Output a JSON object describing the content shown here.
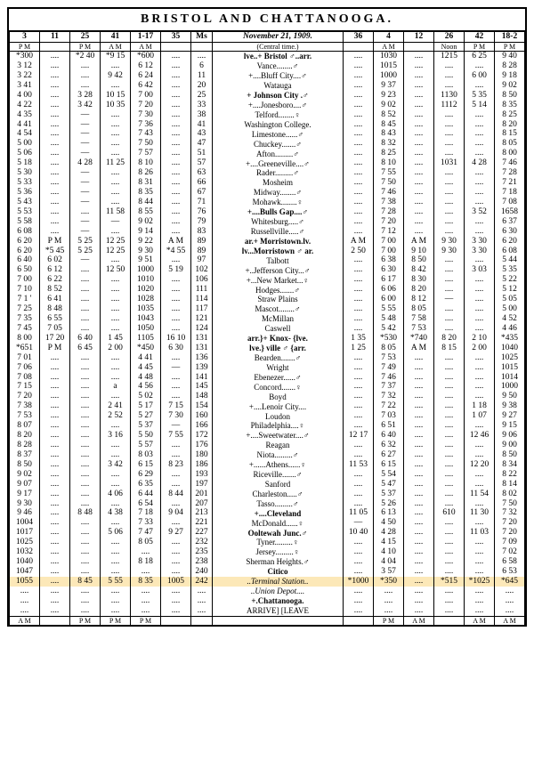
{
  "title": "BRISTOL AND CHATTANOOGA.",
  "date_row": "November 21, 1909.",
  "subtitle": "(Central time.)",
  "arrive_leave": "ARRIVE]        [LEAVE",
  "columns_left": [
    "3",
    "11",
    "25",
    "41",
    "1-17",
    "35",
    "Ms"
  ],
  "columns_right": [
    "36",
    "4",
    "12",
    "26",
    "42",
    "18-2"
  ],
  "ampm_left": [
    "P M",
    "",
    "P M",
    "A M",
    "A M",
    "",
    ""
  ],
  "ampm_right": [
    "",
    "A M",
    "",
    "Noon",
    "P M",
    "P M"
  ],
  "ampm_foot_left": [
    "A M",
    "",
    "P M",
    "P M",
    "P M",
    "",
    ""
  ],
  "ampm_foot_right": [
    "",
    "P M",
    "A M",
    "",
    "A M",
    "A M"
  ],
  "rows": [
    {
      "l": [
        "*300",
        "",
        "*2 40",
        "*9 15",
        "*600",
        "",
        ""
      ],
      "st": "lve..+ Bristol ♂..arr.",
      "b": true,
      "r": [
        "",
        "1030",
        "",
        "1215",
        "6 25",
        "9 40"
      ]
    },
    {
      "l": [
        "3 12",
        "",
        "",
        "",
        "6 12",
        "",
        "6"
      ],
      "st": "Vance........♂",
      "r": [
        "",
        "1015",
        "",
        "",
        "",
        "8 28"
      ]
    },
    {
      "l": [
        "3 22",
        "",
        "",
        "9 42",
        "6 24",
        "",
        "11"
      ],
      "st": "+....Bluff City....♂",
      "r": [
        "",
        "1000",
        "",
        "",
        "6 00",
        "9 18"
      ]
    },
    {
      "l": [
        "3 41",
        "",
        "",
        "",
        "6 42",
        "",
        "20"
      ],
      "st": "Watauga",
      "r": [
        "",
        "9 37",
        "",
        "",
        "",
        "9 02"
      ]
    },
    {
      "l": [
        "4 00",
        "",
        "3 28",
        "10 15",
        "7 00",
        "",
        "25"
      ],
      "st": "+ Johnson City .♂",
      "b": true,
      "r": [
        "",
        "9 23",
        "",
        "1130",
        "5 35",
        "8 50"
      ]
    },
    {
      "l": [
        "4 22",
        "",
        "3 42",
        "10 35",
        "7 20",
        "",
        "33"
      ],
      "st": "+....Jonesboro....♂",
      "r": [
        "",
        "9 02",
        "",
        "1112",
        "5 14",
        "8 35"
      ]
    },
    {
      "l": [
        "4 35",
        "",
        "—",
        "",
        "7 30",
        "",
        "38"
      ],
      "st": "Telford........♀",
      "r": [
        "",
        "8 52",
        "",
        "",
        "",
        "8 25"
      ]
    },
    {
      "l": [
        "4 41",
        "",
        "—",
        "",
        "7 36",
        "",
        "41"
      ],
      "st": "Washington College.",
      "r": [
        "",
        "8 45",
        "",
        "",
        "",
        "8 20"
      ]
    },
    {
      "l": [
        "4 54",
        "",
        "—",
        "",
        "7 43",
        "",
        "43"
      ],
      "st": "Limestone......♂",
      "r": [
        "",
        "8 43",
        "",
        "",
        "",
        "8 15"
      ]
    },
    {
      "l": [
        "5 00",
        "",
        "—",
        "",
        "7 50",
        "",
        "47"
      ],
      "st": "Chuckey.......♂",
      "r": [
        "",
        "8 32",
        "",
        "",
        "",
        "8 05"
      ]
    },
    {
      "l": [
        "5 06",
        "",
        "—",
        "",
        "7 57",
        "",
        "51"
      ],
      "st": "Afton.........♂",
      "r": [
        "",
        "8 25",
        "",
        "",
        "",
        "8 00"
      ]
    },
    {
      "l": [
        "5 18",
        "",
        "4 28",
        "11 25",
        "8 10",
        "",
        "57"
      ],
      "st": "+....Greeneville....♂",
      "r": [
        "",
        "8 10",
        "",
        "1031",
        "4 28",
        "7 46"
      ]
    },
    {
      "l": [
        "5 30",
        "",
        "—",
        "",
        "8 26",
        "",
        "63"
      ],
      "st": "Rader.........♂",
      "r": [
        "",
        "7 55",
        "",
        "",
        "",
        "7 28"
      ]
    },
    {
      "l": [
        "5 33",
        "",
        "—",
        "",
        "8 31",
        "",
        "66"
      ],
      "st": "Mosheim",
      "r": [
        "",
        "7 50",
        "",
        "",
        "",
        "7 21"
      ]
    },
    {
      "l": [
        "5 36",
        "",
        "—",
        "",
        "8 35",
        "",
        "67"
      ],
      "st": "Midway........♂",
      "r": [
        "",
        "7 46",
        "",
        "",
        "",
        "7 18"
      ]
    },
    {
      "l": [
        "5 43",
        "",
        "—",
        "",
        "8 44",
        "",
        "71"
      ],
      "st": "Mohawk........♀",
      "r": [
        "",
        "7 38",
        "",
        "",
        "",
        "7 08"
      ]
    },
    {
      "l": [
        "5 53",
        "",
        "",
        "11 58",
        "8 55",
        "",
        "76"
      ],
      "st": "+....Bulls Gap....♂",
      "b": true,
      "r": [
        "",
        "7 28",
        "",
        "",
        "3 52",
        "1658"
      ]
    },
    {
      "l": [
        "5 58",
        "",
        "—",
        "—",
        "9 02",
        "",
        "79"
      ],
      "st": "Whitesburg.....♂",
      "r": [
        "",
        "7 20",
        "",
        "",
        "",
        "6 37"
      ]
    },
    {
      "l": [
        "6 08",
        "",
        "—",
        "",
        "9 14",
        "",
        "83"
      ],
      "st": "Russellville.....♂",
      "r": [
        "",
        "7 12",
        "",
        "",
        "",
        "6 30"
      ]
    },
    {
      "l": [
        "6 20",
        "P M",
        "5 25",
        "12 25",
        "9 22",
        "A M",
        "89"
      ],
      "st": "ar.+ Morristown.lv.",
      "b": true,
      "r": [
        "A M",
        "7 00",
        "A M",
        "9 30",
        "3 30",
        "6 20"
      ]
    },
    {
      "l": [
        "6 20",
        "*5 45",
        "5 25",
        "12 25",
        "9 30",
        "*4 55",
        "89"
      ],
      "st": "lv...Morristown ♂ ar.",
      "b": true,
      "r": [
        "2 50",
        "7 00",
        "9 10",
        "9 30",
        "3 30",
        "6 08"
      ]
    },
    {
      "l": [
        "6 40",
        "6 02",
        "—",
        "",
        "9 51",
        "",
        "97"
      ],
      "st": "Talbott",
      "r": [
        "",
        "6 38",
        "8 50",
        "",
        "",
        "5 44"
      ]
    },
    {
      "l": [
        "6 50",
        "6 12",
        "",
        "12 50",
        "1000",
        "5 19",
        "102"
      ],
      "st": "+..Jefferson City...♂",
      "r": [
        "",
        "6 30",
        "8 42",
        "",
        "3 03",
        "5 35"
      ]
    },
    {
      "l": [
        "7 00",
        "6 22",
        "",
        "",
        "1010",
        "",
        "106"
      ],
      "st": "+...New Market...♀",
      "r": [
        "",
        "6 17",
        "8 30",
        "",
        "",
        "5 22"
      ]
    },
    {
      "l": [
        "7 10",
        "8 52",
        "",
        "",
        "1020",
        "",
        "111"
      ],
      "st": "Hodges.......♂",
      "r": [
        "",
        "6 06",
        "8 20",
        "",
        "",
        "5 12"
      ]
    },
    {
      "l": [
        "7 1 '",
        "6 41",
        "",
        "",
        "1028",
        "",
        "114"
      ],
      "st": "Straw Plains",
      "r": [
        "",
        "6 00",
        "8 12",
        "—",
        "",
        "5 05"
      ]
    },
    {
      "l": [
        "7 25",
        "8 48",
        "",
        "",
        "1035",
        "",
        "117"
      ],
      "st": "Mascot........♂",
      "r": [
        "",
        "5 55",
        "8 05",
        "",
        "",
        "5 00"
      ]
    },
    {
      "l": [
        "7 35",
        "6 55",
        "",
        "",
        "1043",
        "",
        "121"
      ],
      "st": "McMillan",
      "r": [
        "",
        "5 48",
        "7 58",
        "",
        "",
        "4 52"
      ]
    },
    {
      "l": [
        "7 45",
        "7 05",
        "",
        "",
        "1050",
        "",
        "124"
      ],
      "st": "Caswell",
      "r": [
        "",
        "5 42",
        "7 53",
        "",
        "",
        "4 46"
      ]
    },
    {
      "l": [
        "8 00",
        "17 20",
        "6 40",
        "1 45",
        "1105",
        "16 10",
        "131"
      ],
      "st": "arr.}+ Knox- {lve.",
      "b": true,
      "r": [
        "1 35",
        "*530",
        "*740",
        "8 20",
        "2 10",
        "*435"
      ]
    },
    {
      "l": [
        "*651",
        "P M",
        "6 45",
        "2 00",
        "*450",
        "6 30",
        "131"
      ],
      "st": "lve.}  ville ♂ {arr.",
      "b": true,
      "r": [
        "1 25",
        "8 05",
        "A M",
        "8 15",
        "2 00",
        "1040"
      ]
    },
    {
      "l": [
        "7 01",
        "",
        "",
        "",
        "4 41",
        "",
        "136"
      ],
      "st": "Bearden.......♂",
      "r": [
        "",
        "7 53",
        "",
        "",
        "",
        "1025"
      ]
    },
    {
      "l": [
        "7 06",
        "",
        "",
        "",
        "4 45",
        "—",
        "139"
      ],
      "st": "Wright",
      "r": [
        "",
        "7 49",
        "",
        "",
        "",
        "1015"
      ]
    },
    {
      "l": [
        "7 08",
        "",
        "",
        "",
        "4 48",
        "",
        "141"
      ],
      "st": "Ebenezer......♂",
      "r": [
        "",
        "7 46",
        "",
        "",
        "",
        "1014"
      ]
    },
    {
      "l": [
        "7 15",
        "",
        "",
        "a",
        "4 56",
        "",
        "145"
      ],
      "st": "Concord.......♀",
      "r": [
        "",
        "7 37",
        "",
        "",
        "",
        "1000"
      ]
    },
    {
      "l": [
        "7 20",
        "",
        "",
        "",
        "5 02",
        "",
        "148"
      ],
      "st": "Boyd",
      "r": [
        "",
        "7 32",
        "",
        "",
        "",
        "9 50"
      ]
    },
    {
      "l": [
        "7 38",
        "",
        "",
        "2 41",
        "5 17",
        "7 15",
        "154"
      ],
      "st": "+....Lenoir City....",
      "r": [
        "",
        "7 22",
        "",
        "",
        "1 18",
        "9 38"
      ]
    },
    {
      "l": [
        "7 53",
        "",
        "",
        "2 52",
        "5 27",
        "7 30",
        "160"
      ],
      "st": "Loudon",
      "r": [
        "",
        "7 03",
        "",
        "",
        "1 07",
        "9 27"
      ]
    },
    {
      "l": [
        "8 07",
        "",
        "",
        "",
        "5 37",
        "—",
        "166"
      ],
      "st": "Philadelphia....♀",
      "r": [
        "",
        "6 51",
        "",
        "",
        "",
        "9 15"
      ]
    },
    {
      "l": [
        "8 20",
        "",
        "",
        "3 16",
        "5 50",
        "7 55",
        "172"
      ],
      "st": "+....Sweetwater....♂",
      "r": [
        "12 17",
        "6 40",
        "",
        "",
        "12 46",
        "9 06"
      ]
    },
    {
      "l": [
        "8 28",
        "",
        "",
        "",
        "5 57",
        "",
        "176"
      ],
      "st": "Reagan",
      "r": [
        "",
        "6 32",
        "",
        "",
        "",
        "9 00"
      ]
    },
    {
      "l": [
        "8 37",
        "",
        "",
        "",
        "8 03",
        "",
        "180"
      ],
      "st": "Niota.........♂",
      "r": [
        "",
        "6 27",
        "",
        "",
        "",
        "8 50"
      ]
    },
    {
      "l": [
        "8 50",
        "",
        "",
        "3 42",
        "6 15",
        "8 23",
        "186"
      ],
      "st": "+......Athens......♀",
      "r": [
        "11 53",
        "6 15",
        "",
        "",
        "12 20",
        "8 34"
      ]
    },
    {
      "l": [
        "9 02",
        "",
        "",
        "",
        "6 29",
        "",
        "193"
      ],
      "st": "Riceville.......♂",
      "r": [
        "",
        "5 54",
        "",
        "",
        "",
        "8 22"
      ]
    },
    {
      "l": [
        "9 07",
        "",
        "",
        "",
        "6 35",
        "",
        "197"
      ],
      "st": "Sanford",
      "r": [
        "",
        "5 47",
        "",
        "",
        "",
        "8 14"
      ]
    },
    {
      "l": [
        "9 17",
        "",
        "",
        "4 06",
        "6 44",
        "8 44",
        "201"
      ],
      "st": "Charleston.....♂",
      "r": [
        "",
        "5 37",
        "",
        "",
        "11 54",
        "8 02"
      ]
    },
    {
      "l": [
        "9 30",
        "",
        "",
        "",
        "6 54",
        "",
        "207"
      ],
      "st": "Tasso.........♂",
      "r": [
        "",
        "5 26",
        "",
        "",
        "",
        "7 50"
      ]
    },
    {
      "l": [
        "9 46",
        "",
        "8 48",
        "4 38",
        "7 18",
        "9 04",
        "213"
      ],
      "st": "+....Cleveland",
      "b": true,
      "r": [
        "11 05",
        "6 13",
        "",
        "610",
        "11 30",
        "7 32"
      ]
    },
    {
      "l": [
        "1004",
        "",
        "",
        "",
        "7 33",
        "",
        "221"
      ],
      "st": "McDonald......♀",
      "r": [
        "—",
        "4 50",
        "",
        "",
        "",
        "7 20"
      ]
    },
    {
      "l": [
        "1017",
        "",
        "",
        "5 06",
        "7 47",
        "9 27",
        "227"
      ],
      "st": "Ooltewah Junc.♂",
      "b": true,
      "r": [
        "10 40",
        "4 28",
        "",
        "",
        "11 03",
        "7 20"
      ]
    },
    {
      "l": [
        "1025",
        "",
        "",
        "",
        "8 05",
        "",
        "232"
      ],
      "st": "Tyner.........♀",
      "r": [
        "",
        "4 15",
        "",
        "",
        "",
        "7 09"
      ]
    },
    {
      "l": [
        "1032",
        "",
        "",
        "",
        "",
        "",
        "235"
      ],
      "st": "Jersey.........♀",
      "r": [
        "",
        "4 10",
        "",
        "",
        "",
        "7 02"
      ]
    },
    {
      "l": [
        "1040",
        "",
        "",
        "",
        "8 18",
        "",
        "238"
      ],
      "st": "Sherman Heights.♂",
      "r": [
        "",
        "4 04",
        "",
        "",
        "",
        "6 58"
      ]
    },
    {
      "l": [
        "1047",
        "",
        "",
        "",
        "",
        "",
        "240"
      ],
      "st": "Citico",
      "b": true,
      "r": [
        "",
        "3 57",
        "",
        "",
        "",
        "6 53"
      ]
    },
    {
      "l": [
        "1055",
        "",
        "8 45",
        "5 55",
        "8 35",
        "1005",
        "242"
      ],
      "st": "..Terminal Station..",
      "i": true,
      "hl": true,
      "r": [
        "*1000",
        "*350",
        "",
        "*515",
        "*1025",
        "*645"
      ]
    },
    {
      "l": [
        "",
        "",
        "",
        "",
        "",
        "",
        ""
      ],
      "st": "..Union Depot....",
      "i": true,
      "r": [
        "",
        "",
        "",
        "",
        "",
        ""
      ]
    },
    {
      "l": [
        "",
        "",
        "",
        "",
        "",
        "",
        ""
      ],
      "st": "+.Chattanooga.",
      "b": true,
      "r": [
        "",
        "",
        "",
        "",
        "",
        ""
      ]
    }
  ]
}
